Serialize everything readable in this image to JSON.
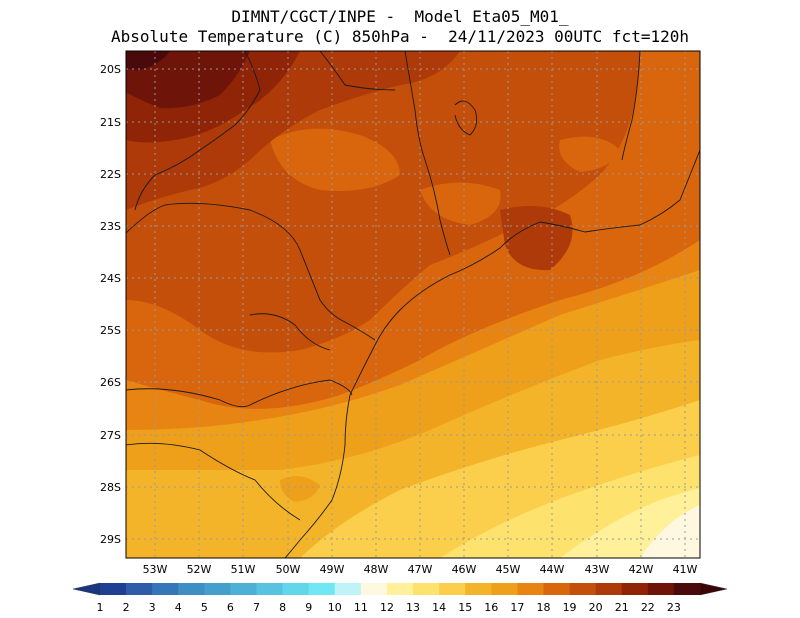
{
  "header": {
    "line1": "DIMNT/CGCT/INPE -  Model Eta05_M01_",
    "line2": "Absolute Temperature (C) 850hPa -  24/11/2023 00UTC fct=120h"
  },
  "map": {
    "lat_labels": [
      "20S",
      "21S",
      "22S",
      "23S",
      "24S",
      "25S",
      "26S",
      "27S",
      "28S",
      "29S"
    ],
    "lon_labels": [
      "53W",
      "52W",
      "51W",
      "50W",
      "49W",
      "48W",
      "47W",
      "46W",
      "45W",
      "44W",
      "43W",
      "42W",
      "41W"
    ]
  },
  "colorbar": {
    "labels": [
      "1",
      "2",
      "3",
      "4",
      "5",
      "6",
      "7",
      "8",
      "9",
      "10",
      "11",
      "12",
      "13",
      "14",
      "15",
      "16",
      "17",
      "18",
      "19",
      "20",
      "21",
      "22",
      "23"
    ],
    "colors": [
      "#1f3f93",
      "#2d5ca8",
      "#3576b8",
      "#3c8ec3",
      "#449fcc",
      "#4db1d6",
      "#57c3e0",
      "#62d6ea",
      "#6fe7f4",
      "#bff3f8",
      "#fff8e0",
      "#fff09a",
      "#fee26e",
      "#fbcf4b",
      "#f4b429",
      "#efa01a",
      "#e88512",
      "#d9660c",
      "#c44f0a",
      "#ad3a08",
      "#8f2407",
      "#6e1408",
      "#4a0a0c"
    ],
    "left_color": "#1a3480",
    "right_color": "#3b0508"
  }
}
